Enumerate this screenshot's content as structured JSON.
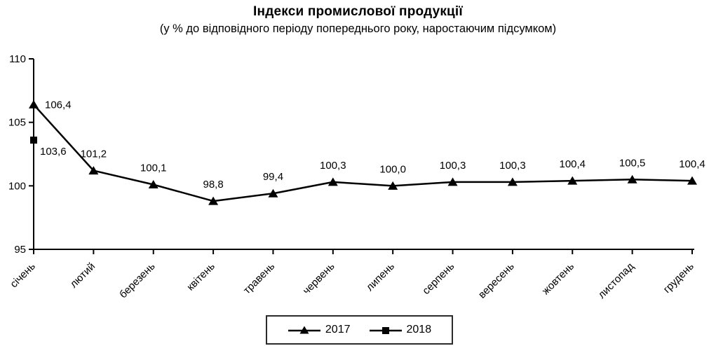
{
  "chart": {
    "title": "Індекси промислової продукції",
    "subtitle": "(у % до відповідного періоду попереднього року, наростаючим підсумком)"
  },
  "legend": {
    "items": [
      {
        "label": "2017",
        "marker": "triangle"
      },
      {
        "label": "2018",
        "marker": "square"
      }
    ]
  },
  "chart_data": {
    "type": "line",
    "title": "Індекси промислової продукції",
    "subtitle": "(у % до відповідного періоду попереднього року, наростаючим підсумком)",
    "categories": [
      "січень",
      "лютий",
      "березень",
      "квітень",
      "травень",
      "червень",
      "липень",
      "серпень",
      "вересень",
      "жовтень",
      "листопад",
      "грудень"
    ],
    "ylim": [
      95,
      110
    ],
    "yticks": [
      95,
      100,
      105,
      110
    ],
    "grid": false,
    "legend_position": "bottom",
    "colors": {
      "line": "#000000",
      "text": "#000000"
    },
    "series": [
      {
        "name": "2017",
        "marker": "triangle",
        "values": [
          106.4,
          101.2,
          100.1,
          98.8,
          99.4,
          100.3,
          100.0,
          100.3,
          100.3,
          100.4,
          100.5,
          100.4
        ],
        "labels": [
          "106,4",
          "101,2",
          "100,1",
          "98,8",
          "99,4",
          "100,3",
          "100,0",
          "100,3",
          "100,3",
          "100,4",
          "100,5",
          "100,4"
        ]
      },
      {
        "name": "2018",
        "marker": "square",
        "values": [
          103.6
        ],
        "labels": [
          "103,6"
        ]
      }
    ]
  }
}
